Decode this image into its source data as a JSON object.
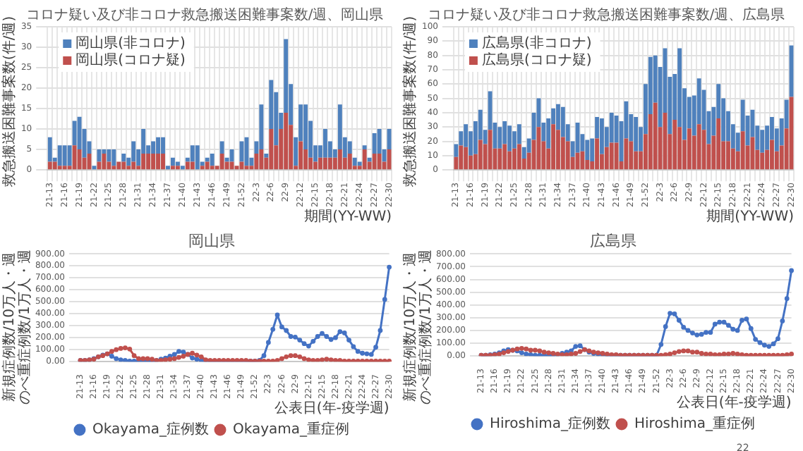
{
  "chart_data": [
    {
      "type": "bar",
      "stacked": true,
      "title": "コロナ疑い及び非コロナ救急搬送困難事案数/週、岡山県",
      "xlabel": "期間(YY-WW)",
      "ylabel": "救急搬送困難事案数(件/週)",
      "legend": "top left",
      "grid": true,
      "categories": [
        "21-13",
        null,
        null,
        "21-16",
        null,
        null,
        "21-19",
        null,
        null,
        "21-22",
        null,
        null,
        "21-25",
        null,
        null,
        "21-28",
        null,
        null,
        "21-31",
        null,
        null,
        "21-34",
        null,
        null,
        "21-37",
        null,
        null,
        "21-40",
        null,
        null,
        "21-43",
        null,
        null,
        "21-46",
        null,
        null,
        "21-49",
        null,
        null,
        "21-52",
        null,
        null,
        "22-3",
        null,
        null,
        "22-6",
        null,
        null,
        "22-9",
        null,
        null,
        "22-12",
        null,
        null,
        "22-15",
        null,
        null,
        "22-18",
        null,
        null,
        "22-21",
        null,
        null,
        "22-24",
        null,
        null,
        "22-27",
        null,
        null,
        "22-30"
      ],
      "ylim": [
        0,
        35
      ],
      "yticks": [
        0,
        5,
        10,
        15,
        20,
        25,
        30,
        35
      ],
      "series": [
        {
          "name": "岡山県(コロナ疑)",
          "color": "#c0504d",
          "values": [
            2,
            2,
            1,
            1,
            1,
            6,
            5,
            3,
            4,
            0,
            2,
            4,
            2,
            1,
            2,
            2,
            1,
            2,
            1,
            4,
            4,
            4,
            4,
            4,
            0,
            1,
            1,
            0,
            2,
            2,
            0,
            1,
            2,
            1,
            1,
            4,
            2,
            2,
            1,
            2,
            1,
            1,
            4,
            5,
            3,
            10,
            6,
            10,
            14,
            11,
            1,
            7,
            5,
            3,
            2,
            3,
            3,
            3,
            3,
            5,
            3,
            4,
            1,
            1,
            5,
            2,
            4,
            4,
            2,
            5
          ]
        },
        {
          "name": "岡山県(非コロナ)",
          "color": "#4f81bd",
          "values": [
            6,
            1,
            5,
            5,
            5,
            6,
            8,
            7,
            3,
            1,
            3,
            1,
            3,
            4,
            0,
            2,
            2,
            5,
            4,
            6,
            2,
            3,
            4,
            4,
            1,
            2,
            1,
            1,
            1,
            4,
            6,
            1,
            1,
            3,
            0,
            3,
            1,
            3,
            0,
            5,
            7,
            2,
            3,
            11,
            1,
            12,
            13,
            4,
            18,
            10,
            7,
            9,
            11,
            9,
            4,
            3,
            7,
            4,
            2,
            11,
            5,
            3,
            2,
            1,
            1,
            1,
            5,
            6,
            3,
            5
          ]
        }
      ]
    },
    {
      "type": "bar",
      "stacked": true,
      "title": "コロナ疑い及び非コロナ救急搬送困難事案数/週、広島県",
      "xlabel": "期間(YY-WW)",
      "ylabel": "救急搬送困難事案数(件/週)",
      "legend": "top left",
      "grid": true,
      "categories": [
        "21-13",
        null,
        null,
        "21-16",
        null,
        null,
        "21-19",
        null,
        null,
        "21-22",
        null,
        null,
        "21-25",
        null,
        null,
        "21-28",
        null,
        null,
        "21-31",
        null,
        null,
        "21-34",
        null,
        null,
        "21-37",
        null,
        null,
        "21-40",
        null,
        null,
        "21-43",
        null,
        null,
        "21-46",
        null,
        null,
        "21-49",
        null,
        null,
        "21-52",
        null,
        null,
        "22-3",
        null,
        null,
        "22-6",
        null,
        null,
        "22-9",
        null,
        null,
        "22-12",
        null,
        null,
        "22-15",
        null,
        null,
        "22-18",
        null,
        null,
        "22-21",
        null,
        null,
        "22-24",
        null,
        null,
        "22-27",
        null,
        null,
        "22-30"
      ],
      "ylim": [
        0,
        100
      ],
      "yticks": [
        0,
        10,
        20,
        30,
        40,
        50,
        60,
        70,
        80,
        90,
        100
      ],
      "series": [
        {
          "name": "広島県(コロナ疑)",
          "color": "#c0504d",
          "values": [
            9,
            17,
            16,
            10,
            11,
            21,
            18,
            28,
            15,
            15,
            18,
            13,
            15,
            18,
            8,
            12,
            21,
            30,
            20,
            15,
            32,
            28,
            23,
            20,
            9,
            12,
            13,
            7,
            6,
            22,
            11,
            16,
            19,
            19,
            6,
            22,
            20,
            13,
            13,
            25,
            39,
            47,
            30,
            40,
            25,
            35,
            30,
            21,
            29,
            24,
            32,
            28,
            18,
            24,
            36,
            20,
            20,
            15,
            13,
            27,
            17,
            23,
            14,
            12,
            14,
            21,
            13,
            17,
            29,
            51
          ]
        },
        {
          "name": "広島県(非コロナ)",
          "color": "#4f81bd",
          "values": [
            9,
            10,
            16,
            17,
            23,
            21,
            10,
            27,
            18,
            15,
            16,
            18,
            12,
            14,
            8,
            10,
            19,
            20,
            13,
            21,
            11,
            18,
            21,
            12,
            11,
            21,
            12,
            14,
            16,
            15,
            25,
            14,
            21,
            19,
            28,
            26,
            19,
            24,
            17,
            35,
            40,
            33,
            42,
            45,
            40,
            32,
            55,
            36,
            22,
            28,
            32,
            28,
            23,
            20,
            24,
            30,
            21,
            17,
            13,
            22,
            21,
            19,
            17,
            16,
            17,
            16,
            16,
            19,
            20,
            36
          ]
        }
      ]
    },
    {
      "type": "line",
      "title": "岡山県",
      "xlabel": "公表日(年-疫学週)",
      "ylabel": "新規症例数/10万人・週のべ重症例数/1万人・週",
      "legend": "bottom",
      "grid": "y",
      "marker": "circle",
      "categories": [
        "21-13",
        null,
        null,
        "21-16",
        null,
        null,
        "21-19",
        null,
        null,
        "21-22",
        null,
        null,
        "21-25",
        null,
        null,
        "21-28",
        null,
        null,
        "21-31",
        null,
        null,
        "21-34",
        null,
        null,
        "21-37",
        null,
        null,
        "21-40",
        null,
        null,
        "21-43",
        null,
        null,
        "21-46",
        null,
        null,
        "21-49",
        null,
        null,
        "21-52",
        null,
        null,
        "22-3",
        null,
        null,
        "22-6",
        null,
        null,
        "22-9",
        null,
        null,
        "22-12",
        null,
        null,
        "22-15",
        null,
        null,
        "22-18",
        null,
        null,
        "22-21",
        null,
        null,
        "22-24",
        null,
        null,
        "22-27",
        null,
        null,
        "22-30"
      ],
      "ylim": [
        0,
        900
      ],
      "yticks": [
        {
          "value": 0,
          "label": "0.00"
        },
        {
          "value": 100,
          "label": "100.00"
        },
        {
          "value": 200,
          "label": "200.00"
        },
        {
          "value": 300,
          "label": "300.00"
        },
        {
          "value": 400,
          "label": "400.00"
        },
        {
          "value": 500,
          "label": "500.00"
        },
        {
          "value": 600,
          "label": "600.00"
        },
        {
          "value": 700,
          "label": "700.00"
        },
        {
          "value": 800,
          "label": "800.00"
        },
        {
          "value": 900,
          "label": "900.00"
        }
      ],
      "series": [
        {
          "name": "Okayama_症例数",
          "color": "#4472c4",
          "values": [
            10,
            10,
            15,
            25,
            40,
            55,
            65,
            45,
            25,
            15,
            10,
            5,
            5,
            5,
            5,
            5,
            5,
            10,
            20,
            30,
            45,
            60,
            85,
            80,
            60,
            30,
            20,
            10,
            5,
            5,
            5,
            5,
            5,
            5,
            5,
            5,
            5,
            5,
            5,
            5,
            10,
            50,
            160,
            270,
            390,
            290,
            260,
            210,
            205,
            180,
            150,
            130,
            170,
            210,
            235,
            210,
            185,
            200,
            250,
            240,
            180,
            125,
            85,
            70,
            65,
            60,
            120,
            260,
            520,
            790
          ]
        },
        {
          "name": "Okayama_重症例",
          "color": "#c0504d",
          "values": [
            10,
            10,
            15,
            20,
            40,
            50,
            65,
            85,
            100,
            110,
            115,
            105,
            50,
            25,
            25,
            25,
            20,
            10,
            10,
            15,
            20,
            25,
            35,
            45,
            60,
            70,
            55,
            40,
            15,
            10,
            10,
            10,
            10,
            10,
            10,
            10,
            10,
            10,
            5,
            5,
            5,
            5,
            5,
            5,
            10,
            25,
            40,
            50,
            50,
            40,
            25,
            15,
            10,
            10,
            15,
            20,
            15,
            10,
            10,
            5,
            5,
            5,
            5,
            5,
            5,
            5,
            5,
            5,
            5,
            5
          ]
        }
      ]
    },
    {
      "type": "line",
      "title": "広島県",
      "xlabel": "公表日(年-疫学週)",
      "ylabel": "新規症例数/10万人・週のべ重症例数/1万人・週",
      "legend": "bottom",
      "grid": "y",
      "marker": "circle",
      "annotations": [
        "22"
      ],
      "categories": [
        "21-13",
        null,
        null,
        "21-16",
        null,
        null,
        "21-19",
        null,
        null,
        "21-22",
        null,
        null,
        "21-25",
        null,
        null,
        "21-28",
        null,
        null,
        "21-31",
        null,
        null,
        "21-34",
        null,
        null,
        "21-37",
        null,
        null,
        "21-40",
        null,
        null,
        "21-43",
        null,
        null,
        "21-46",
        null,
        null,
        "21-49",
        null,
        null,
        "21-52",
        null,
        null,
        "22-3",
        null,
        null,
        "22-6",
        null,
        null,
        "22-9",
        null,
        null,
        "22-12",
        null,
        null,
        "22-15",
        null,
        null,
        "22-18",
        null,
        null,
        "22-21",
        null,
        null,
        "22-24",
        null,
        null,
        "22-27",
        null,
        null,
        "22-30"
      ],
      "ylim": [
        0,
        800
      ],
      "yticks": [
        {
          "value": 0,
          "label": "0.00"
        },
        {
          "value": 100,
          "label": "100.00"
        },
        {
          "value": 200,
          "label": "200.00"
        },
        {
          "value": 300,
          "label": "300.00"
        },
        {
          "value": 400,
          "label": "400.00"
        },
        {
          "value": 500,
          "label": "500.00"
        },
        {
          "value": 600,
          "label": "600.00"
        },
        {
          "value": 700,
          "label": "700.00"
        },
        {
          "value": 800,
          "label": "800.00"
        }
      ],
      "series": [
        {
          "name": "Hiroshima_症例数",
          "color": "#4472c4",
          "values": [
            5,
            5,
            10,
            15,
            25,
            40,
            50,
            45,
            40,
            25,
            15,
            10,
            5,
            5,
            5,
            5,
            5,
            10,
            20,
            30,
            40,
            75,
            80,
            50,
            30,
            20,
            15,
            10,
            5,
            5,
            5,
            5,
            5,
            5,
            5,
            5,
            5,
            5,
            5,
            5,
            90,
            230,
            335,
            330,
            280,
            225,
            200,
            180,
            165,
            170,
            185,
            185,
            250,
            265,
            265,
            240,
            210,
            200,
            280,
            290,
            215,
            130,
            105,
            85,
            75,
            95,
            135,
            275,
            450,
            670
          ]
        },
        {
          "name": "Hiroshima_重症例",
          "color": "#c0504d",
          "values": [
            5,
            5,
            5,
            10,
            15,
            25,
            35,
            45,
            55,
            60,
            55,
            45,
            45,
            40,
            30,
            25,
            20,
            15,
            10,
            10,
            15,
            20,
            35,
            50,
            40,
            30,
            25,
            20,
            15,
            10,
            10,
            5,
            5,
            5,
            5,
            5,
            5,
            5,
            5,
            5,
            5,
            10,
            15,
            25,
            35,
            40,
            40,
            30,
            30,
            20,
            15,
            15,
            10,
            10,
            15,
            15,
            20,
            15,
            10,
            5,
            5,
            5,
            5,
            5,
            5,
            5,
            5,
            5,
            10,
            15
          ]
        }
      ]
    }
  ]
}
